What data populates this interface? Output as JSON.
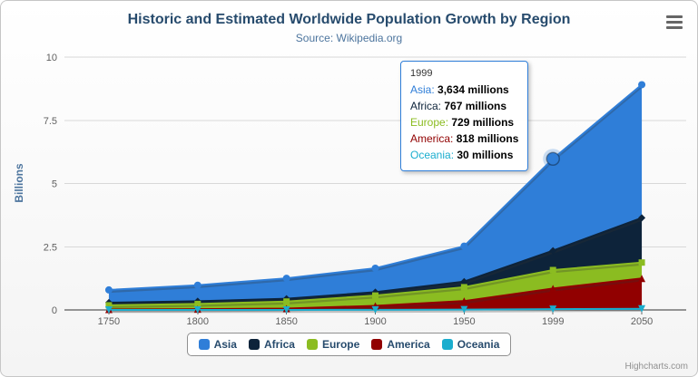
{
  "title": "Historic and Estimated Worldwide Population Growth by Region",
  "subtitle": "Source: Wikipedia.org",
  "credits": "Highcharts.com",
  "icons": {
    "context_menu": "hamburger"
  },
  "chart_data": {
    "type": "area",
    "stacked": true,
    "title": "Historic and Estimated Worldwide Population Growth by Region",
    "subtitle": "Source: Wikipedia.org",
    "categories": [
      "1750",
      "1800",
      "1850",
      "1900",
      "1950",
      "1999",
      "2050"
    ],
    "values_unit": "millions",
    "ylabel": "Billions",
    "ylim": [
      0,
      10
    ],
    "yticks": [
      0,
      2.5,
      5,
      7.5,
      10
    ],
    "grid": true,
    "legend_position": "bottom",
    "series": [
      {
        "name": "Asia",
        "color": "#2f7ed8",
        "marker": "circle",
        "values": [
          502,
          635,
          809,
          947,
          1402,
          3634,
          5268
        ]
      },
      {
        "name": "Africa",
        "color": "#0d233a",
        "marker": "diamond",
        "values": [
          106,
          107,
          111,
          133,
          221,
          767,
          1766
        ]
      },
      {
        "name": "Europe",
        "color": "#8bbc21",
        "marker": "square",
        "values": [
          163,
          203,
          276,
          408,
          547,
          729,
          628
        ]
      },
      {
        "name": "America",
        "color": "#910000",
        "marker": "triangle",
        "values": [
          18,
          31,
          54,
          156,
          339,
          818,
          1201
        ]
      },
      {
        "name": "Oceania",
        "color": "#1aadce",
        "marker": "triangle-down",
        "values": [
          2,
          2,
          2,
          6,
          13,
          30,
          46
        ]
      }
    ]
  },
  "tooltip": {
    "header": "1999",
    "hovered_series": "Asia",
    "hovered_category": "1999",
    "rows": [
      {
        "name": "Asia",
        "value": "3,634 millions"
      },
      {
        "name": "Africa",
        "value": "767 millions"
      },
      {
        "name": "Europe",
        "value": "729 millions"
      },
      {
        "name": "America",
        "value": "818 millions"
      },
      {
        "name": "Oceania",
        "value": "30 millions"
      }
    ]
  }
}
